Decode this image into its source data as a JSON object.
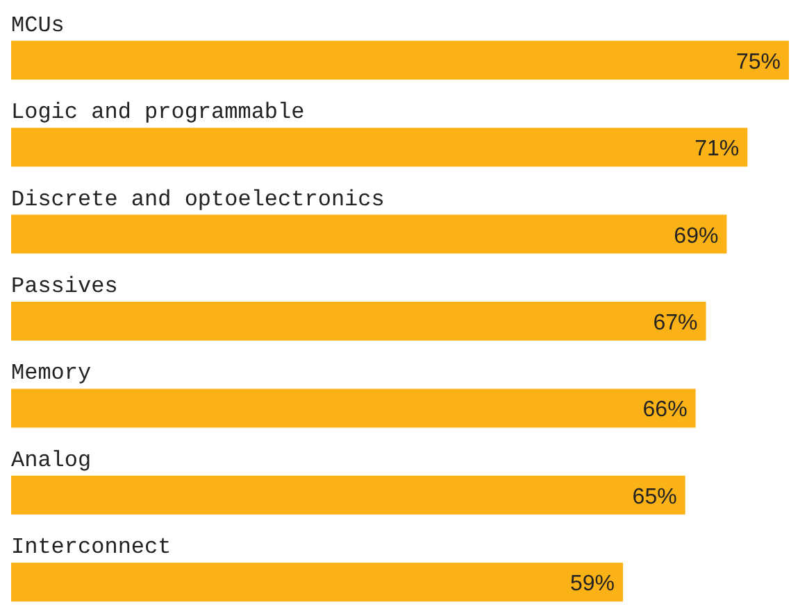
{
  "chart_data": {
    "type": "bar",
    "orientation": "horizontal",
    "categories": [
      "MCUs",
      "Logic and programmable",
      "Discrete and optoelectronics",
      "Passives",
      "Memory",
      "Analog",
      "Interconnect"
    ],
    "values": [
      75,
      71,
      69,
      67,
      66,
      65,
      59
    ],
    "value_labels": [
      "75%",
      "71%",
      "69%",
      "67%",
      "66%",
      "65%",
      "59%"
    ],
    "color": "#fbb216",
    "tick_labels": false
  }
}
